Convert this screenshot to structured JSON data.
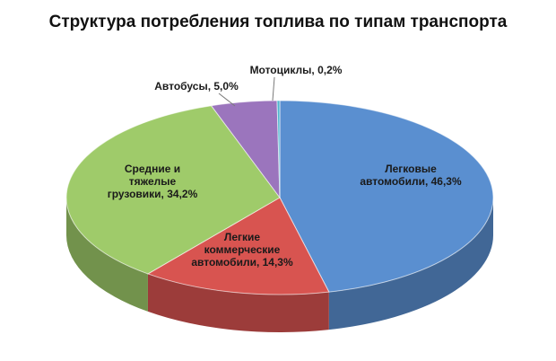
{
  "chart_data": {
    "type": "pie",
    "title": "Структура потребления топлива по типам транспорта",
    "slices": [
      {
        "label_lines": [
          "Легковые",
          "автомобили, 46,3%"
        ],
        "category": "Легковые автомобили",
        "value": 46.3,
        "color": "#5a8fd0"
      },
      {
        "label_lines": [
          "Легкие",
          "коммерческие",
          "автомобили, 14,3%"
        ],
        "category": "Легкие коммерческие автомобили",
        "value": 14.3,
        "color": "#d85450"
      },
      {
        "label_lines": [
          "Средние и",
          "тяжелые",
          "грузовики, 34,2%"
        ],
        "category": "Средние и тяжелые грузовики",
        "value": 34.2,
        "color": "#9fcb6a"
      },
      {
        "label_lines": [
          "Автобусы, 5,0%"
        ],
        "category": "Автобусы",
        "value": 5.0,
        "color": "#9b75bd"
      },
      {
        "label_lines": [
          "Мотоциклы, 0,2%"
        ],
        "category": "Мотоциклы",
        "value": 0.2,
        "color": "#4fb6cf"
      }
    ],
    "legend": "none",
    "style": "3d"
  }
}
